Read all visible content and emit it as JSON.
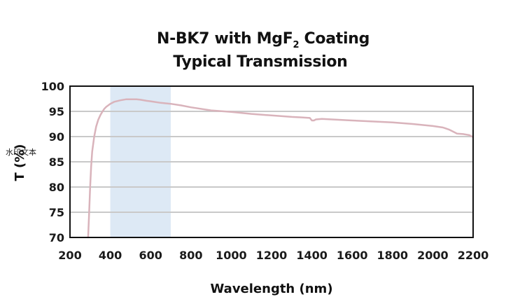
{
  "chart_data": {
    "type": "line",
    "title_line1_prefix": "N-BK7 with MgF",
    "title_line1_sub": "2",
    "title_line1_suffix": " Coating",
    "title_line2": "Typical Transmission",
    "xlabel": "Wavelength (nm)",
    "ylabel": "T (%)",
    "watermark": "水印文本",
    "xlim": [
      200,
      2200
    ],
    "ylim": [
      70,
      100
    ],
    "x_ticks": [
      200,
      400,
      600,
      800,
      1000,
      1200,
      1400,
      1600,
      1800,
      2000,
      2200
    ],
    "y_ticks": [
      70,
      75,
      80,
      85,
      90,
      95,
      100
    ],
    "grid": true,
    "highlight_band": {
      "x_start": 400,
      "x_end": 700,
      "color": "#dde9f5"
    },
    "line_color": "#d9b3bb",
    "series": [
      {
        "x": [
          290,
          295,
          300,
          305,
          310,
          320,
          330,
          340,
          350,
          360,
          370,
          380,
          400,
          420,
          450,
          480,
          500,
          530,
          550,
          580,
          600,
          650,
          700,
          750,
          800,
          900,
          1000,
          1100,
          1200,
          1300,
          1350,
          1390,
          1400,
          1410,
          1420,
          1450,
          1500,
          1600,
          1700,
          1800,
          1900,
          2000,
          2050,
          2080,
          2100,
          2120,
          2150,
          2180,
          2200
        ],
        "y": [
          70,
          75,
          80,
          84,
          87,
          90,
          92,
          93.3,
          94.2,
          94.9,
          95.5,
          95.9,
          96.5,
          96.9,
          97.2,
          97.4,
          97.4,
          97.4,
          97.3,
          97.1,
          97,
          96.7,
          96.5,
          96.2,
          95.8,
          95.2,
          94.9,
          94.5,
          94.2,
          93.9,
          93.8,
          93.7,
          93.2,
          93.2,
          93.4,
          93.5,
          93.4,
          93.2,
          93,
          92.8,
          92.5,
          92.1,
          91.8,
          91.4,
          91,
          90.6,
          90.5,
          90.3,
          89.9
        ]
      }
    ]
  }
}
